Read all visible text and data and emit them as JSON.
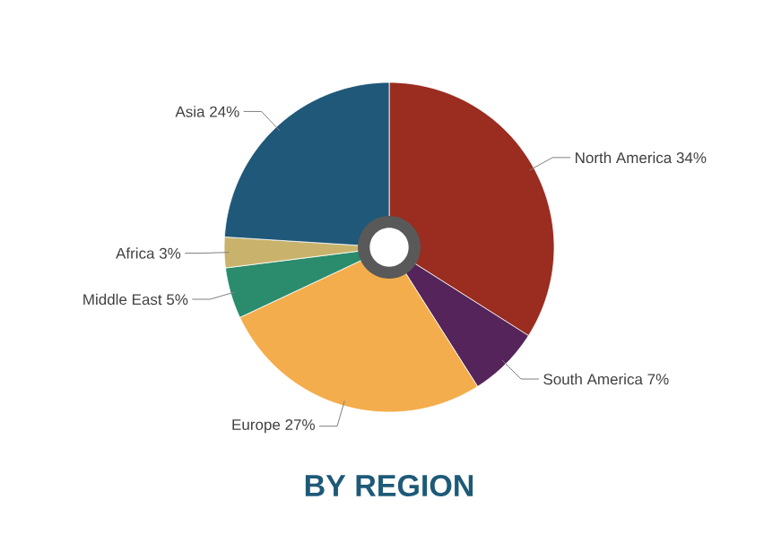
{
  "chart_data": {
    "type": "pie",
    "title": "BY REGION",
    "categories": [
      "North America",
      "South America",
      "Europe",
      "Middle East",
      "Africa",
      "Asia"
    ],
    "values": [
      34,
      7,
      27,
      5,
      3,
      24
    ],
    "value_labels": [
      "34%",
      "7%",
      "27%",
      "5%",
      "3%",
      "24%"
    ],
    "colors": [
      "#9a2c20",
      "#55245a",
      "#f4ad4c",
      "#2a8c6c",
      "#c9b36c",
      "#1f5878"
    ]
  }
}
